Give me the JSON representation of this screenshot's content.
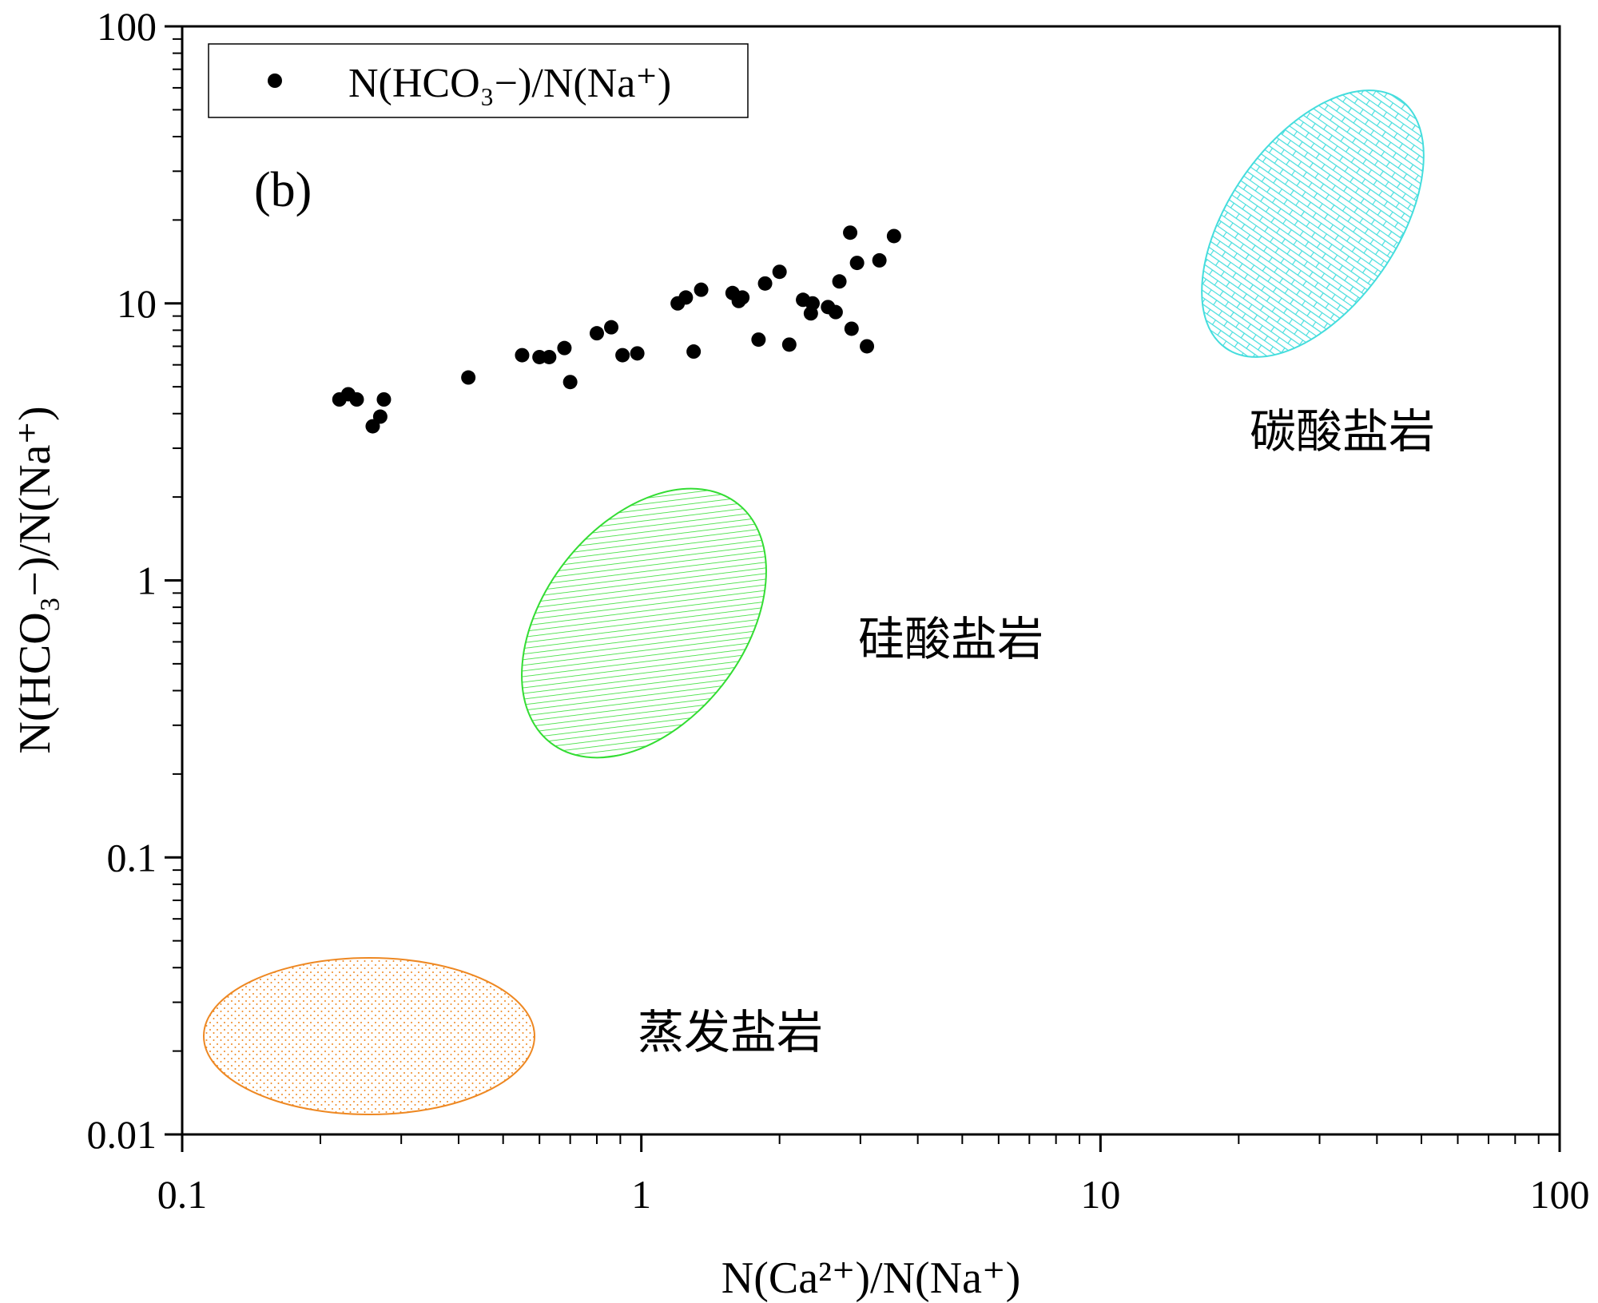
{
  "chart_data": {
    "type": "scatter",
    "title": "",
    "panel_label": "(b)",
    "xlabel": "N(Ca²⁺)/N(Na⁺)",
    "ylabel": "N(HCO₃−)/N(Na⁺)",
    "xscale": "log",
    "yscale": "log",
    "xlim": [
      0.1,
      100
    ],
    "ylim": [
      0.01,
      100
    ],
    "x_ticks": [
      0.1,
      1,
      10,
      100
    ],
    "x_tick_labels": [
      "0.1",
      "1",
      "10",
      "100"
    ],
    "y_ticks": [
      0.01,
      0.1,
      1,
      10,
      100
    ],
    "y_tick_labels": [
      "0.01",
      "0.1",
      "1",
      "10",
      "100"
    ],
    "legend": {
      "position": "top-left",
      "entries": [
        "N(HCO₃−)/N(Na⁺)"
      ]
    },
    "series": [
      {
        "name": "N(HCO₃−)/N(Na⁺)",
        "marker": "circle",
        "color": "#000000",
        "points": [
          [
            0.22,
            4.5
          ],
          [
            0.23,
            4.7
          ],
          [
            0.24,
            4.5
          ],
          [
            0.26,
            3.6
          ],
          [
            0.27,
            3.9
          ],
          [
            0.275,
            4.5
          ],
          [
            0.42,
            5.4
          ],
          [
            0.55,
            6.5
          ],
          [
            0.6,
            6.4
          ],
          [
            0.63,
            6.4
          ],
          [
            0.68,
            6.9
          ],
          [
            0.7,
            5.2
          ],
          [
            0.8,
            7.8
          ],
          [
            0.86,
            8.2
          ],
          [
            0.91,
            6.5
          ],
          [
            0.98,
            6.6
          ],
          [
            1.2,
            10.0
          ],
          [
            1.25,
            10.5
          ],
          [
            1.3,
            6.7
          ],
          [
            1.35,
            11.2
          ],
          [
            1.58,
            10.9
          ],
          [
            1.63,
            10.2
          ],
          [
            1.66,
            10.5
          ],
          [
            1.8,
            7.4
          ],
          [
            1.86,
            11.8
          ],
          [
            2.0,
            13.0
          ],
          [
            2.1,
            7.1
          ],
          [
            2.25,
            10.3
          ],
          [
            2.34,
            9.2
          ],
          [
            2.36,
            10.0
          ],
          [
            2.55,
            9.7
          ],
          [
            2.65,
            9.3
          ],
          [
            2.7,
            12.0
          ],
          [
            2.85,
            18.0
          ],
          [
            2.87,
            8.1
          ],
          [
            2.95,
            14.0
          ],
          [
            3.1,
            7.0
          ],
          [
            3.3,
            14.3
          ],
          [
            3.55,
            17.5
          ]
        ]
      }
    ],
    "regions": [
      {
        "name": "碳酸盐岩",
        "label": "碳酸盐岩",
        "color": "#44dddd",
        "pattern": "brick",
        "cx": 29,
        "cy": 25,
        "label_x": 32,
        "label_y": 3.5
      },
      {
        "name": "硅酸盐岩",
        "label": "硅酸盐岩",
        "color": "#33dd33",
        "pattern": "diagonal",
        "cx": 1.0,
        "cy": 0.85,
        "label_x": 1.95,
        "label_y": 0.7
      },
      {
        "name": "蒸发盐岩",
        "label": "蒸发盐岩",
        "color": "#ee8822",
        "pattern": "dots",
        "cx": 0.26,
        "cy": 0.024,
        "label_x": 0.85,
        "label_y": 0.024
      }
    ]
  }
}
